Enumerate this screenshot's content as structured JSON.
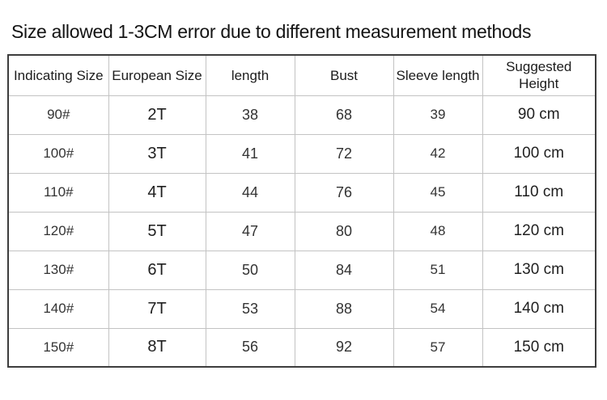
{
  "chart_data": {
    "type": "table",
    "title": "Size allowed 1-3CM error due to different measurement methods",
    "columns": [
      "Indicating Size",
      "European Size",
      "length",
      "Bust",
      "Sleeve length",
      "Suggested Height"
    ],
    "rows": [
      [
        "90#",
        "2T",
        "38",
        "68",
        "39",
        "90 cm"
      ],
      [
        "100#",
        "3T",
        "41",
        "72",
        "42",
        "100 cm"
      ],
      [
        "110#",
        "4T",
        "44",
        "76",
        "45",
        "110 cm"
      ],
      [
        "120#",
        "5T",
        "47",
        "80",
        "48",
        "120 cm"
      ],
      [
        "130#",
        "6T",
        "50",
        "84",
        "51",
        "130 cm"
      ],
      [
        "140#",
        "7T",
        "53",
        "88",
        "54",
        "140 cm"
      ],
      [
        "150#",
        "8T",
        "56",
        "92",
        "57",
        "150 cm"
      ]
    ],
    "layout": {
      "grid": "on",
      "background": "#ffffff",
      "outer_border_color": "#3d3d3d",
      "grid_line_color": "#c3c3c3",
      "text_color": "#333333"
    }
  }
}
